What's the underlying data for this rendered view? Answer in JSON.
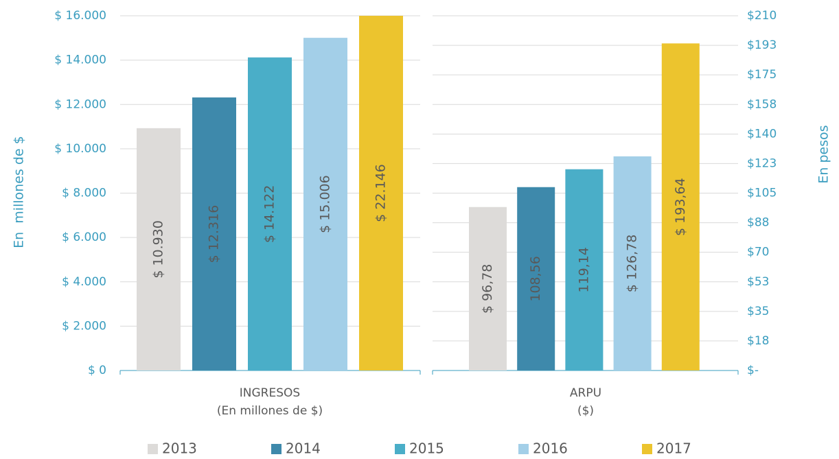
{
  "chart_data": [
    {
      "type": "bar",
      "categories": [
        [
          "INGRESOS",
          "(En millones de $)"
        ]
      ],
      "ylabel": "En  millones de $",
      "y_axis_position": "left",
      "ylim": [
        0,
        16000
      ],
      "yticks": [
        {
          "value": 0,
          "label": "$ 0"
        },
        {
          "value": 2000,
          "label": "$ 2.000"
        },
        {
          "value": 4000,
          "label": "$ 4.000"
        },
        {
          "value": 6000,
          "label": "$ 6.000"
        },
        {
          "value": 8000,
          "label": "$ 8.000"
        },
        {
          "value": 10000,
          "label": "$ 10.000"
        },
        {
          "value": 12000,
          "label": "$ 12.000"
        },
        {
          "value": 14000,
          "label": "$ 14.000"
        },
        {
          "value": 16000,
          "label": "$ 16.000"
        }
      ],
      "grid": true,
      "legend": "bottom",
      "series": [
        {
          "name": "2013",
          "color": "#dddbd9",
          "values": [
            10930
          ],
          "value_labels": [
            "$ 10.930"
          ]
        },
        {
          "name": "2014",
          "color": "#3e89ab",
          "values": [
            12316
          ],
          "value_labels": [
            "$ 12.316"
          ]
        },
        {
          "name": "2015",
          "color": "#4aaec8",
          "values": [
            14122
          ],
          "value_labels": [
            "$ 14.122"
          ]
        },
        {
          "name": "2016",
          "color": "#a3cfe8",
          "values": [
            15006
          ],
          "value_labels": [
            "$ 15.006"
          ]
        },
        {
          "name": "2017",
          "color": "#ecc42e",
          "values": [
            22146
          ],
          "value_labels": [
            "$ 22.146"
          ]
        }
      ]
    },
    {
      "type": "bar",
      "categories": [
        [
          "ARPU",
          "($)"
        ]
      ],
      "ylabel": "En pesos",
      "y_axis_position": "right",
      "ylim": [
        0,
        210
      ],
      "yticks": [
        {
          "value": 0,
          "label": "$-"
        },
        {
          "value": 17.5,
          "label": "$18"
        },
        {
          "value": 35,
          "label": "$35"
        },
        {
          "value": 52.5,
          "label": "$53"
        },
        {
          "value": 70,
          "label": "$70"
        },
        {
          "value": 87.5,
          "label": "$88"
        },
        {
          "value": 105,
          "label": "$105"
        },
        {
          "value": 122.5,
          "label": "$123"
        },
        {
          "value": 140,
          "label": "$140"
        },
        {
          "value": 157.5,
          "label": "$158"
        },
        {
          "value": 175,
          "label": "$175"
        },
        {
          "value": 192.5,
          "label": "$193"
        },
        {
          "value": 210,
          "label": "$210"
        }
      ],
      "grid": true,
      "series": [
        {
          "name": "2013",
          "color": "#dddbd9",
          "values": [
            96.78
          ],
          "value_labels": [
            "$ 96,78"
          ]
        },
        {
          "name": "2014",
          "color": "#3e89ab",
          "values": [
            108.56
          ],
          "value_labels": [
            "108,56"
          ]
        },
        {
          "name": "2015",
          "color": "#4aaec8",
          "values": [
            119.14
          ],
          "value_labels": [
            "119,14"
          ]
        },
        {
          "name": "2016",
          "color": "#a3cfe8",
          "values": [
            126.78
          ],
          "value_labels": [
            "$ 126,78"
          ]
        },
        {
          "name": "2017",
          "color": "#ecc42e",
          "values": [
            193.64
          ],
          "value_labels": [
            "$ 193,64"
          ]
        }
      ]
    }
  ]
}
